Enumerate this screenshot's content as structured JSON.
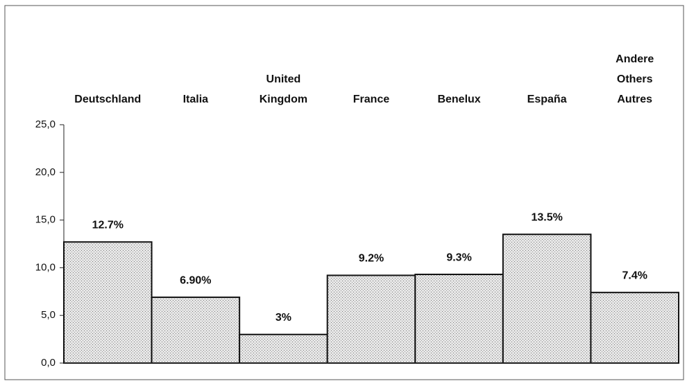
{
  "chart_data": {
    "type": "bar",
    "categories": [
      "Deutschland",
      "Italia",
      "United\nKingdom",
      "France",
      "Benelux",
      "España",
      "Andere\nOthers\nAutres"
    ],
    "values": [
      12.7,
      6.9,
      3,
      9.2,
      9.3,
      13.5,
      7.4
    ],
    "value_labels": [
      "12.7%",
      "6.90%",
      "3%",
      "9.2%",
      "9.3%",
      "13.5%",
      "7.4%"
    ],
    "color": "#e6e6e6",
    "ylim": [
      0,
      25
    ],
    "yticks": [
      {
        "value": 0,
        "label": "0,0"
      },
      {
        "value": 5,
        "label": "5,0"
      },
      {
        "value": 10,
        "label": "10,0"
      },
      {
        "value": 15,
        "label": "15,0"
      },
      {
        "value": 20,
        "label": "20,0"
      },
      {
        "value": 25,
        "label": "25,0"
      }
    ],
    "grid": false
  }
}
